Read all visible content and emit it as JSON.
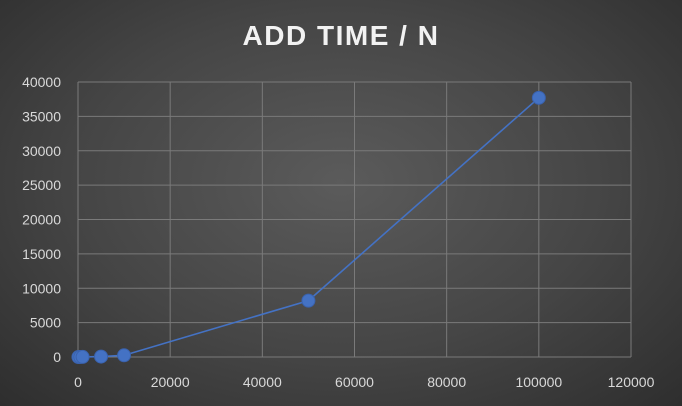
{
  "chart_data": {
    "type": "scatter",
    "title": "ADD TIME / N",
    "xlabel": "",
    "ylabel": "",
    "xlim": [
      0,
      120000
    ],
    "ylim": [
      0,
      40000
    ],
    "x_ticks": [
      "0",
      "20000",
      "40000",
      "60000",
      "80000",
      "100000",
      "120000"
    ],
    "y_ticks": [
      "0",
      "5000",
      "10000",
      "15000",
      "20000",
      "25000",
      "30000",
      "35000",
      "40000"
    ],
    "grid": true,
    "legend": "none",
    "series": [
      {
        "x": [
          100,
          500,
          1000,
          5000,
          10000,
          50000,
          100000
        ],
        "y": [
          0,
          5,
          10,
          60,
          250,
          8200,
          37700
        ],
        "color": "#4472c4",
        "lines": true,
        "markers": true
      }
    ]
  }
}
